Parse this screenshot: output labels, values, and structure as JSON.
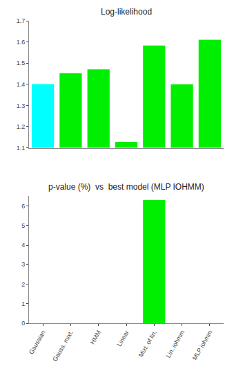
{
  "chart_data": [
    {
      "type": "bar",
      "title": "Log-likelihood",
      "categories": [
        "Gaussian",
        "Gauss. mixt.",
        "HMM",
        "Linear",
        "Mixt. of lin.",
        "Lin. iohmm",
        "MLP iohmm"
      ],
      "values": [
        1.401,
        1.452,
        1.47,
        1.128,
        1.583,
        1.4,
        1.61
      ],
      "colors": [
        "#00FFFF",
        "#00EE00",
        "#00EE00",
        "#00EE00",
        "#00EE00",
        "#00EE00",
        "#00EE00"
      ],
      "ylim": [
        1.1,
        1.7
      ],
      "yticks": [
        1.1,
        1.2,
        1.3,
        1.4,
        1.5,
        1.6,
        1.7
      ],
      "grid": false,
      "tick_labels": "y"
    },
    {
      "type": "bar",
      "title": "p-value (%)  vs  best model (MLP IOHMM)",
      "categories": [
        "Gaussian",
        "Gauss. mixt.",
        "HMM",
        "Linear",
        "Mixt. of lin.",
        "Lin. iohmm",
        "MLP iohmm"
      ],
      "values": [
        0.0,
        0.0,
        0.0,
        0.0,
        6.3,
        0.0,
        0.0
      ],
      "colors": [
        "#00EE00",
        "#00EE00",
        "#00EE00",
        "#00EE00",
        "#00EE00",
        "#00EE00",
        "#00EE00"
      ],
      "ylim": [
        0,
        6.5
      ],
      "yticks": [
        0,
        1,
        2,
        3,
        4,
        5,
        6
      ],
      "grid": false
    }
  ]
}
